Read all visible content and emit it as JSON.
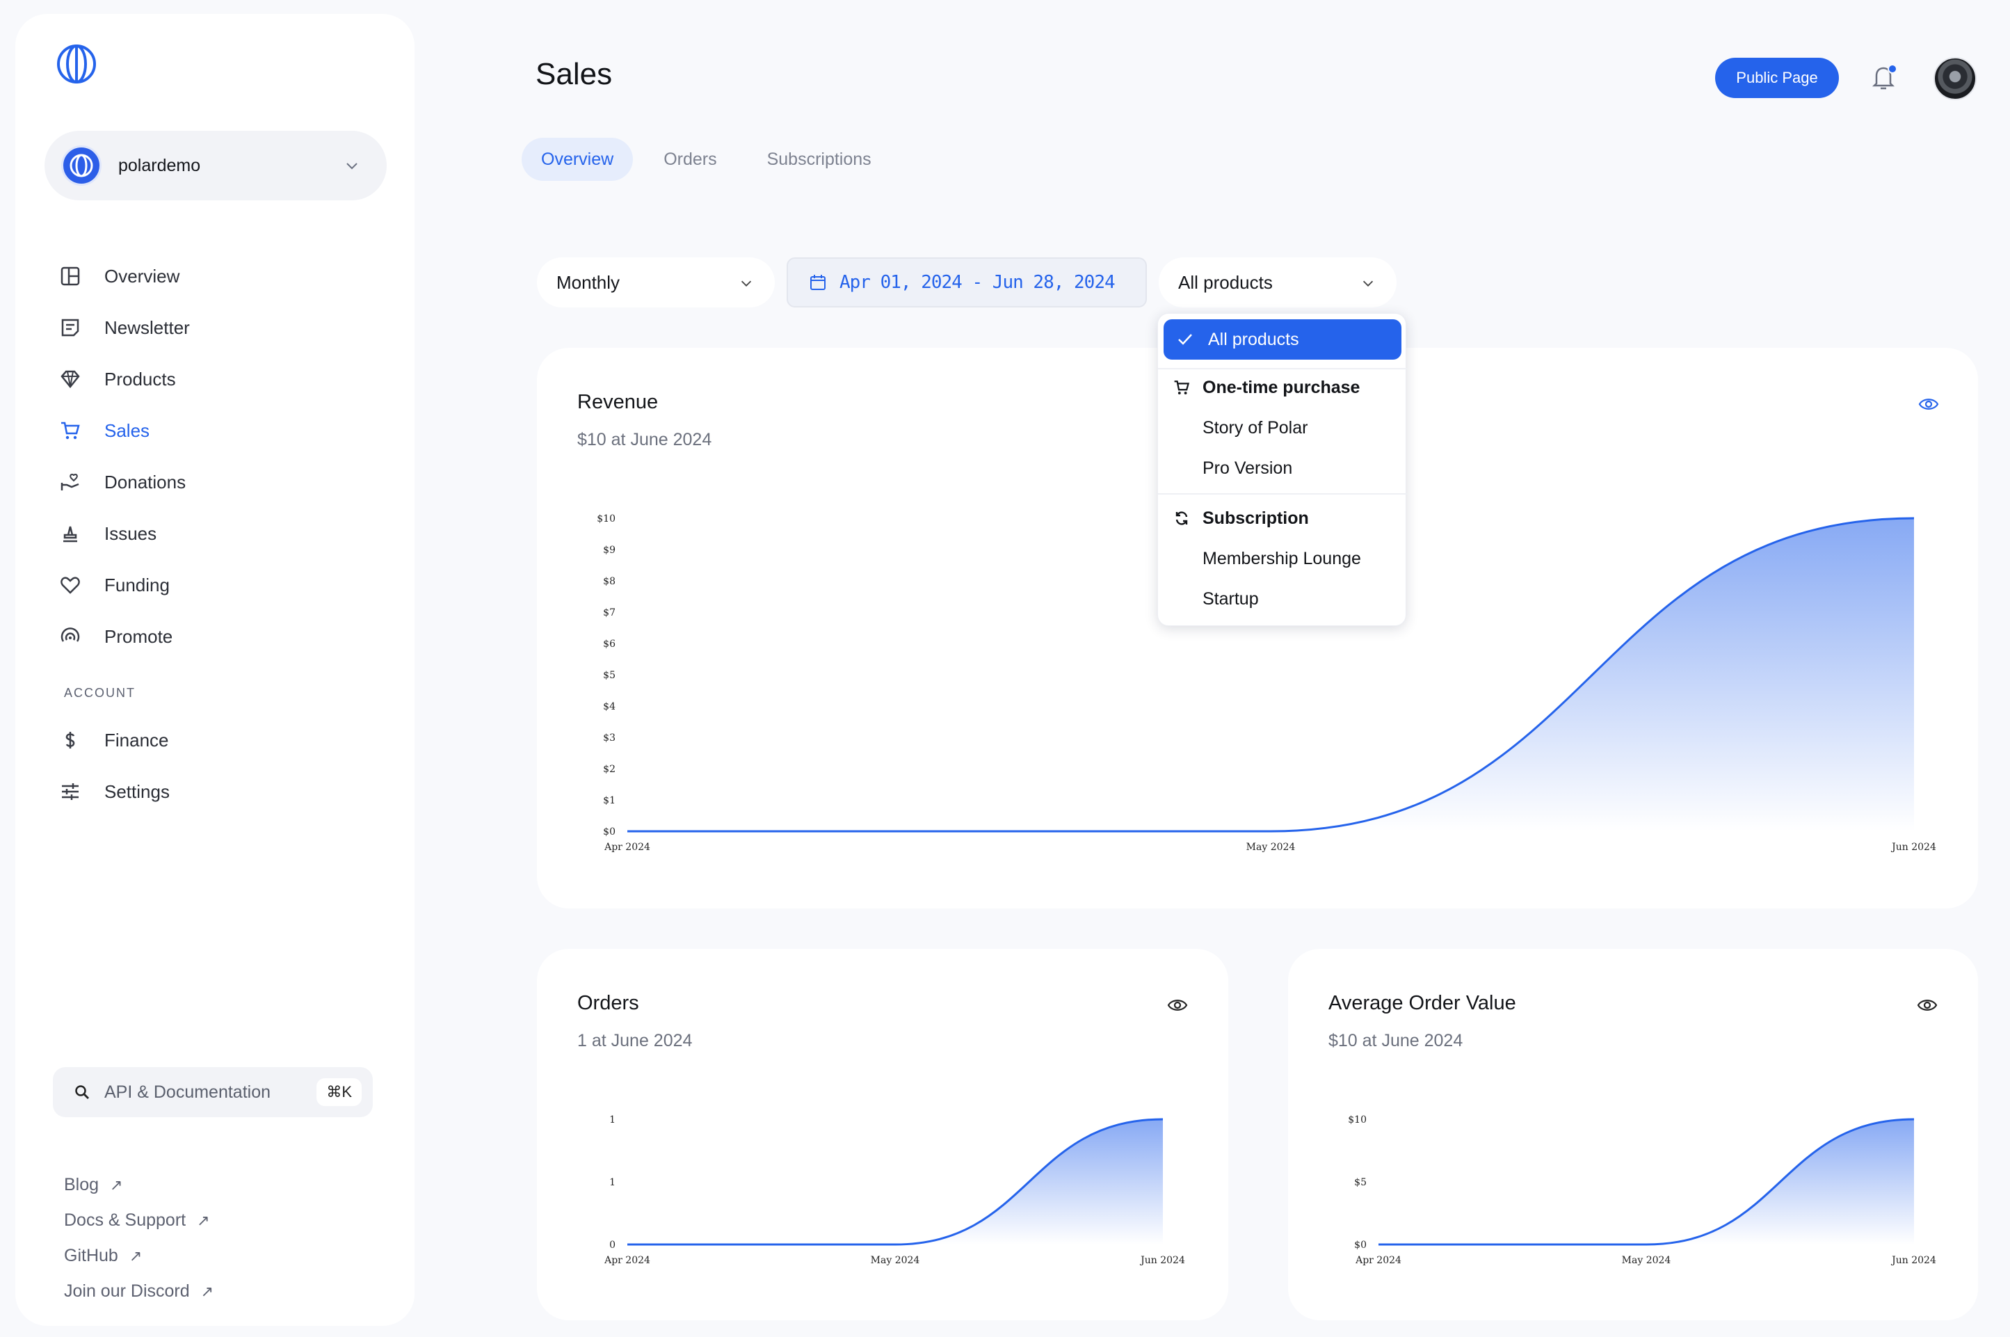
{
  "sidebar": {
    "org_name": "polardemo",
    "nav": [
      {
        "label": "Overview",
        "icon": "layout-icon"
      },
      {
        "label": "Newsletter",
        "icon": "newsletter-icon"
      },
      {
        "label": "Products",
        "icon": "diamond-icon"
      },
      {
        "label": "Sales",
        "icon": "cart-icon"
      },
      {
        "label": "Donations",
        "icon": "donation-icon"
      },
      {
        "label": "Issues",
        "icon": "issues-icon"
      },
      {
        "label": "Funding",
        "icon": "heart-icon"
      },
      {
        "label": "Promote",
        "icon": "promote-icon"
      }
    ],
    "account_section": "ACCOUNT",
    "account_nav": [
      {
        "label": "Finance",
        "icon": "dollar-icon"
      },
      {
        "label": "Settings",
        "icon": "sliders-icon"
      }
    ],
    "doc_search": {
      "label": "API & Documentation",
      "shortcut": "⌘K"
    },
    "links": [
      "Blog",
      "Docs & Support",
      "GitHub",
      "Join our Discord"
    ],
    "link_arrow": "↗"
  },
  "header": {
    "title": "Sales",
    "public_page": "Public Page"
  },
  "tabs": [
    "Overview",
    "Orders",
    "Subscriptions"
  ],
  "filters": {
    "interval": "Monthly",
    "date_range": "Apr 01, 2024 - Jun 28, 2024",
    "product": "All products"
  },
  "dropdown": {
    "selected": "All products",
    "groups": [
      {
        "label": "One-time purchase",
        "icon": "cart-icon",
        "items": [
          "Story of Polar",
          "Pro Version"
        ]
      },
      {
        "label": "Subscription",
        "icon": "refresh-icon",
        "items": [
          "Membership Lounge",
          "Startup"
        ]
      }
    ]
  },
  "accent_color": "#2563eb",
  "cards": {
    "revenue": {
      "title": "Revenue",
      "subtitle": "$10 at June 2024"
    },
    "orders": {
      "title": "Orders",
      "subtitle": "1 at June 2024"
    },
    "aov": {
      "title": "Average Order Value",
      "subtitle": "$10 at June 2024"
    }
  },
  "chart_data": [
    {
      "type": "area",
      "title": "Revenue",
      "x": [
        "Apr 2024",
        "May 2024",
        "Jun 2024"
      ],
      "values": [
        0,
        0,
        10
      ],
      "y_ticks": [
        "$0",
        "$1",
        "$2",
        "$3",
        "$4",
        "$5",
        "$6",
        "$7",
        "$8",
        "$9",
        "$10"
      ],
      "ylim": [
        0,
        10
      ]
    },
    {
      "type": "area",
      "title": "Orders",
      "x": [
        "Apr 2024",
        "May 2024",
        "Jun 2024"
      ],
      "values": [
        0,
        0,
        1
      ],
      "y_ticks": [
        "0",
        "1",
        "1"
      ],
      "ylim": [
        0,
        1
      ]
    },
    {
      "type": "area",
      "title": "Average Order Value",
      "x": [
        "Apr 2024",
        "May 2024",
        "Jun 2024"
      ],
      "values": [
        0,
        0,
        10
      ],
      "y_ticks": [
        "$0",
        "$5",
        "$10"
      ],
      "ylim": [
        0,
        10
      ]
    }
  ]
}
